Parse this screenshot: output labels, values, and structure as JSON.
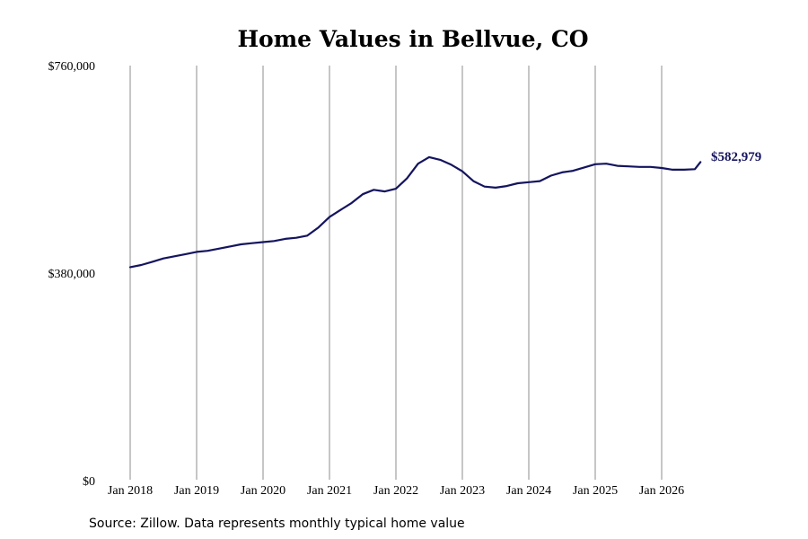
{
  "chart_data": {
    "type": "line",
    "title": "Home Values in Bellvue, CO",
    "ylim": [
      0,
      760000
    ],
    "y_ticks": [
      {
        "value": 0,
        "label": "$0"
      },
      {
        "value": 380000,
        "label": "$380,000"
      },
      {
        "value": 760000,
        "label": "$760,000"
      }
    ],
    "x_ticks": [
      "Jan 2018",
      "Jan 2019",
      "Jan 2020",
      "Jan 2021",
      "Jan 2022",
      "Jan 2023",
      "Jan 2024",
      "Jan 2025",
      "Jan 2026"
    ],
    "grid": {
      "vertical": true,
      "horizontal": false
    },
    "line_color": "#14145f",
    "series": [
      {
        "values": [
          [
            "2018-01",
            390000
          ],
          [
            "2018-03",
            394000
          ],
          [
            "2018-05",
            400000
          ],
          [
            "2018-07",
            406000
          ],
          [
            "2018-09",
            410000
          ],
          [
            "2018-11",
            414000
          ],
          [
            "2019-01",
            418000
          ],
          [
            "2019-03",
            420000
          ],
          [
            "2019-05",
            424000
          ],
          [
            "2019-07",
            428000
          ],
          [
            "2019-09",
            432000
          ],
          [
            "2019-11",
            434000
          ],
          [
            "2020-01",
            436000
          ],
          [
            "2020-03",
            438000
          ],
          [
            "2020-05",
            442000
          ],
          [
            "2020-07",
            444000
          ],
          [
            "2020-09",
            448000
          ],
          [
            "2020-11",
            463000
          ],
          [
            "2021-01",
            482000
          ],
          [
            "2021-03",
            495000
          ],
          [
            "2021-05",
            508000
          ],
          [
            "2021-07",
            524000
          ],
          [
            "2021-09",
            532000
          ],
          [
            "2021-11",
            529000
          ],
          [
            "2022-01",
            534000
          ],
          [
            "2022-03",
            553000
          ],
          [
            "2022-05",
            580000
          ],
          [
            "2022-07",
            592000
          ],
          [
            "2022-09",
            587000
          ],
          [
            "2022-11",
            578000
          ],
          [
            "2023-01",
            566000
          ],
          [
            "2023-03",
            548000
          ],
          [
            "2023-05",
            538000
          ],
          [
            "2023-07",
            536000
          ],
          [
            "2023-09",
            539000
          ],
          [
            "2023-11",
            544000
          ],
          [
            "2024-01",
            546000
          ],
          [
            "2024-03",
            548000
          ],
          [
            "2024-05",
            558000
          ],
          [
            "2024-07",
            564000
          ],
          [
            "2024-09",
            567000
          ],
          [
            "2024-11",
            573000
          ],
          [
            "2025-01",
            579000
          ],
          [
            "2025-03",
            580000
          ],
          [
            "2025-05",
            576000
          ],
          [
            "2025-07",
            575000
          ],
          [
            "2025-09",
            574000
          ],
          [
            "2025-11",
            574000
          ],
          [
            "2026-01",
            572000
          ],
          [
            "2026-03",
            569000
          ],
          [
            "2026-05",
            569000
          ],
          [
            "2026-07",
            570000
          ],
          [
            "2026-08",
            582979
          ]
        ]
      }
    ],
    "last_value_label": "$582,979"
  },
  "footer": {
    "source": "Source: Zillow. Data represents monthly typical home value"
  }
}
